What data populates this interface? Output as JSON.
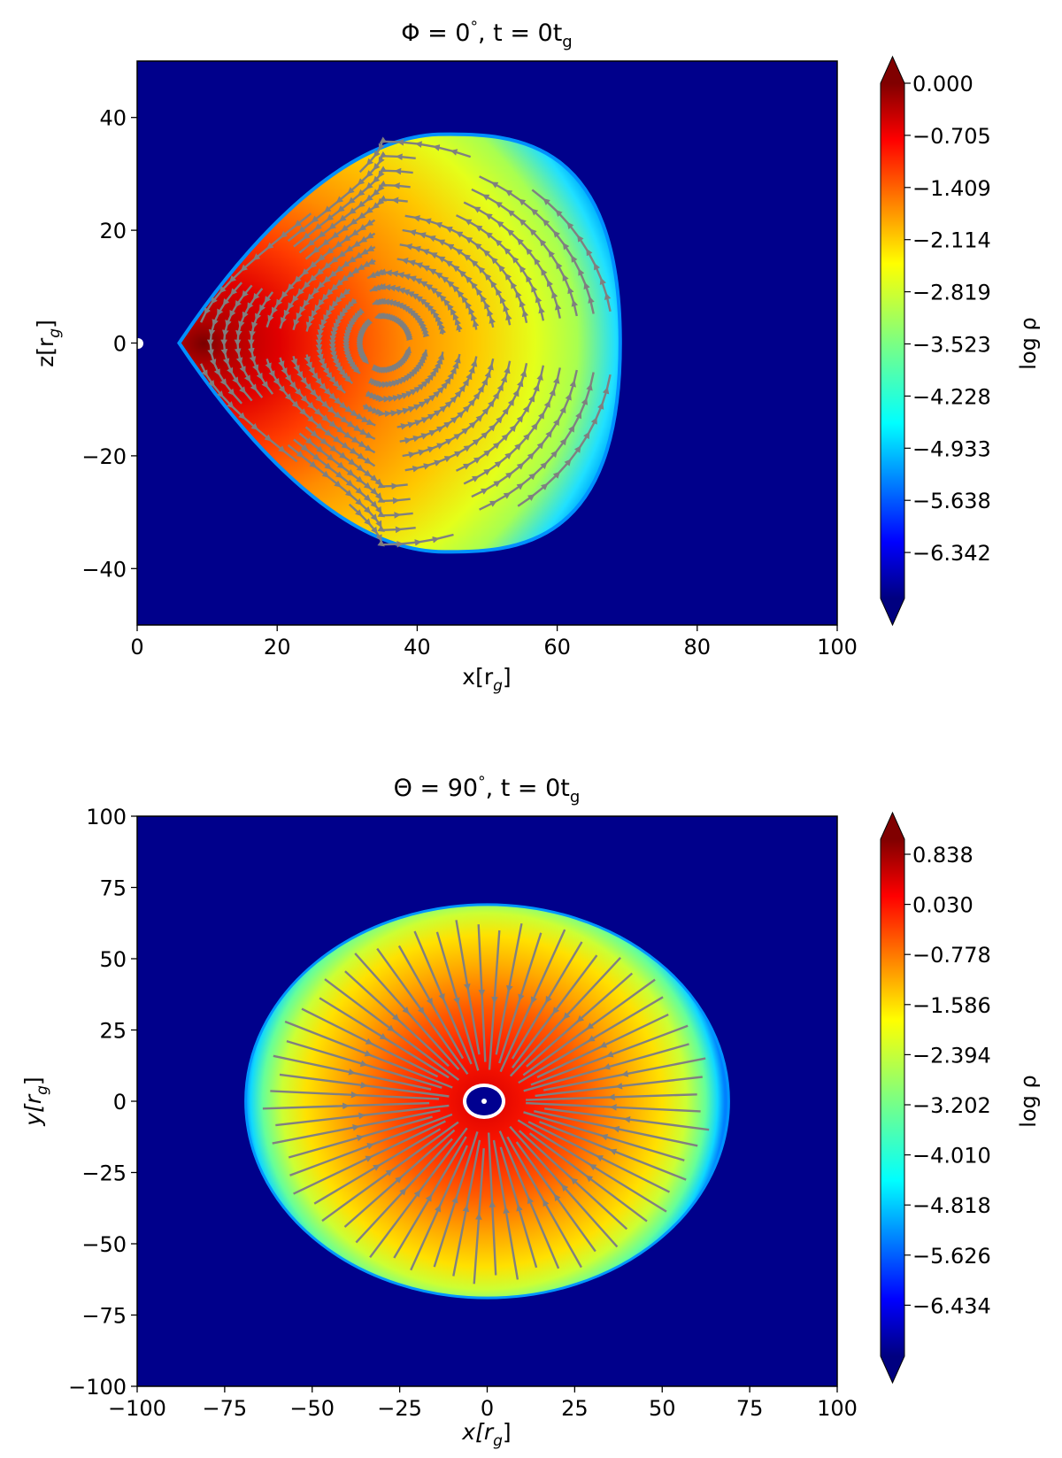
{
  "chart_data": [
    {
      "type": "heatmap",
      "title": "Φ = 0°, t = 0t_g",
      "title_parts": {
        "a": "Φ = 0",
        "deg": "°",
        "b": ", t = 0t",
        "sub": "g"
      },
      "xlabel": {
        "main": "x[r",
        "sub": "g",
        "end": "]"
      },
      "ylabel": {
        "main": "z[r",
        "sub": "g",
        "end": "]"
      },
      "xlim": [
        0,
        100
      ],
      "ylim": [
        -50,
        50
      ],
      "xticks": [
        0,
        20,
        40,
        60,
        80,
        100
      ],
      "yticks": [
        -40,
        -20,
        0,
        20,
        40
      ],
      "colorbar": {
        "label": "log ρ",
        "ticks": [
          "0.000",
          "−0.705",
          "−1.409",
          "−2.114",
          "−2.819",
          "−3.523",
          "−4.228",
          "−4.933",
          "−5.638",
          "−6.342"
        ],
        "colormap": "jet",
        "extend": "both"
      },
      "streamlines": "gray, closed loops around torus center",
      "torus": {
        "inner_edge_x": 6,
        "outer_edge_x": 69,
        "center_x": 35,
        "max_height_z": 37
      },
      "colors": {
        "background": "#00008b",
        "streamline": "#808080"
      }
    },
    {
      "type": "heatmap",
      "title": "Θ = 90°, t = 0t_g",
      "title_parts": {
        "a": "Θ = 90",
        "deg": "°",
        "b": ",  t = 0t",
        "sub": "g"
      },
      "xlabel": {
        "main": "x[r",
        "sub": "g",
        "end": "]"
      },
      "ylabel": {
        "main": "y[r",
        "sub": "g",
        "end": "]"
      },
      "xlim": [
        -100,
        100
      ],
      "ylim": [
        -100,
        100
      ],
      "xticks": [
        -100,
        -75,
        -50,
        -25,
        0,
        25,
        50,
        75,
        100
      ],
      "yticks": [
        -100,
        -75,
        -50,
        -25,
        0,
        25,
        50,
        75,
        100
      ],
      "colorbar": {
        "label": "log ρ",
        "ticks": [
          "0.838",
          "0.030",
          "−0.778",
          "−1.586",
          "−2.394",
          "−3.202",
          "−4.010",
          "−4.818",
          "−5.626",
          "−6.434"
        ],
        "colormap": "jet",
        "extend": "both"
      },
      "streamlines": "gray, radial inflow toward center",
      "disk": {
        "outer_radius_x": 69,
        "outer_radius_y": 69,
        "inner_hole_radius": 6
      },
      "colors": {
        "background": "#00008b",
        "streamline": "#808080"
      }
    }
  ]
}
